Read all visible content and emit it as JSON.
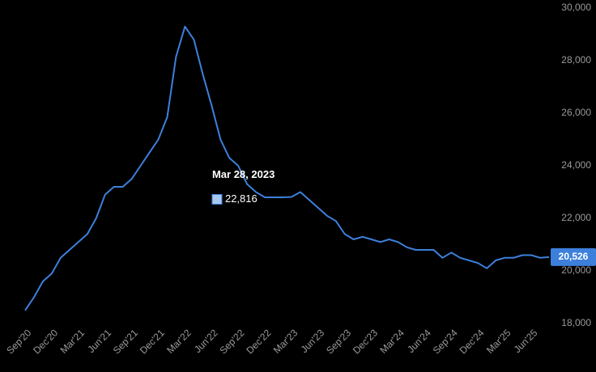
{
  "chart_data": {
    "type": "line",
    "categories": [
      "Sep'20",
      null,
      null,
      "Dec'20",
      null,
      null,
      "Mar'21",
      null,
      null,
      "Jun'21",
      null,
      null,
      "Sep'21",
      null,
      null,
      "Dec'21",
      null,
      null,
      "Mar'22",
      null,
      null,
      "Jun'22",
      null,
      null,
      "Sep'22",
      null,
      null,
      "Dec'22",
      null,
      null,
      "Mar'23",
      null,
      null,
      "Jun'23",
      null,
      null,
      "Sep'23",
      null,
      null,
      "Dec'23",
      null,
      null,
      "Mar'24",
      null,
      null,
      "Jun'24",
      null,
      null,
      "Sep'24",
      null,
      null,
      "Dec'24",
      null,
      null,
      "Mar'25",
      null,
      null,
      "Jun'25",
      null,
      null
    ],
    "series": [
      {
        "color": "#3d80dc",
        "values": [
          18500,
          19000,
          19600,
          19900,
          20500,
          20800,
          21100,
          21400,
          22000,
          22900,
          23200,
          23200,
          23500,
          24000,
          24500,
          25000,
          25850,
          28150,
          29300,
          28800,
          27500,
          26300,
          25000,
          24300,
          24000,
          23300,
          23000,
          22800,
          22800,
          22800,
          22816,
          23000,
          22700,
          22400,
          22100,
          21900,
          21400,
          21200,
          21300,
          21200,
          21100,
          21200,
          21100,
          20900,
          20800,
          20800,
          20800,
          20500,
          20700,
          20500,
          20400,
          20300,
          20100,
          20400,
          20500,
          20500,
          20600,
          20600,
          20500,
          20526
        ],
        "value_labels": [
          null,
          null,
          null,
          null,
          null,
          null,
          null,
          null,
          null,
          null,
          null,
          null,
          null,
          null,
          null,
          null,
          null,
          null,
          null,
          null,
          null,
          null,
          null,
          null,
          null,
          null,
          null,
          null,
          null,
          null,
          null,
          null,
          null,
          null,
          null,
          null,
          null,
          null,
          null,
          null,
          null,
          null,
          null,
          null,
          null,
          null,
          null,
          null,
          null,
          null,
          null,
          null,
          null,
          null,
          null,
          null,
          null,
          null,
          null,
          "20,526"
        ]
      }
    ],
    "tooltip": {
      "title": "Mar 28, 2023",
      "value": 22816,
      "label": "22,816"
    },
    "ylim": [
      18000,
      30000
    ],
    "yticks": [
      {
        "value": 18000,
        "label": "18,000"
      },
      {
        "value": 20000,
        "label": "20,000"
      },
      {
        "value": 22000,
        "label": "22,000"
      },
      {
        "value": 24000,
        "label": "24,000"
      },
      {
        "value": 26000,
        "label": "26,000"
      },
      {
        "value": 28000,
        "label": "28,000"
      },
      {
        "value": 30000,
        "label": "30,000"
      }
    ],
    "grid": false
  }
}
